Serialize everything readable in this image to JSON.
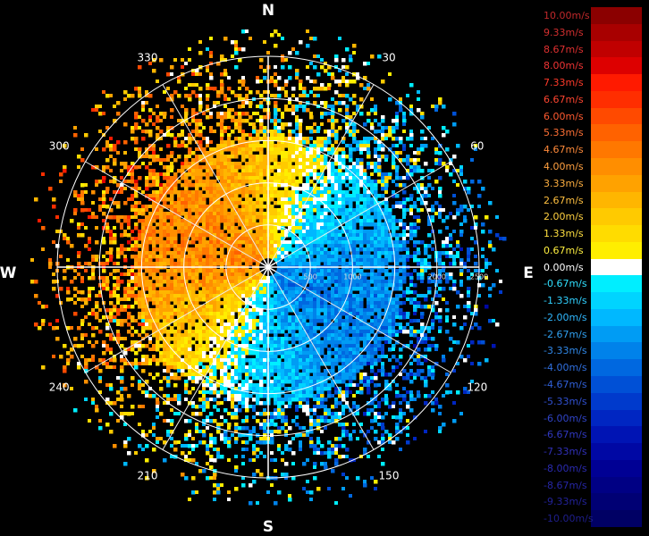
{
  "chart_data": {
    "type": "polar-radar",
    "cardinal_labels": {
      "north": "N",
      "east": "E",
      "south": "S",
      "west": "W"
    },
    "azimuth_labels": [
      {
        "angle": 30,
        "text": "30"
      },
      {
        "angle": 60,
        "text": "60"
      },
      {
        "angle": 120,
        "text": "120"
      },
      {
        "angle": 150,
        "text": "150"
      },
      {
        "angle": 210,
        "text": "210"
      },
      {
        "angle": 240,
        "text": "240"
      },
      {
        "angle": 300,
        "text": "300"
      },
      {
        "angle": 330,
        "text": "330"
      }
    ],
    "range_rings": [
      500,
      1000,
      1500,
      2000,
      2500
    ],
    "range_tick_labels": [
      {
        "value": 500,
        "text": "500"
      },
      {
        "value": 1000,
        "text": "1000"
      },
      {
        "value": 2000,
        "text": "2000"
      },
      {
        "value": 2500,
        "text": "2500"
      }
    ],
    "max_range": 2500,
    "color_scale": [
      {
        "label": "10.00m/s",
        "value": 10.0,
        "color": "#8b0000",
        "text_color": "#c0282a"
      },
      {
        "label": "9.33m/s",
        "value": 9.33,
        "color": "#a80000",
        "text_color": "#d32f2f"
      },
      {
        "label": "8.67m/s",
        "value": 8.67,
        "color": "#c00000",
        "text_color": "#e03030"
      },
      {
        "label": "8.00m/s",
        "value": 8.0,
        "color": "#dd0000",
        "text_color": "#f03434"
      },
      {
        "label": "7.33m/s",
        "value": 7.33,
        "color": "#ff1a00",
        "text_color": "#ff3a2a"
      },
      {
        "label": "6.67m/s",
        "value": 6.67,
        "color": "#ff2e00",
        "text_color": "#ff4530"
      },
      {
        "label": "6.00m/s",
        "value": 6.0,
        "color": "#ff4a00",
        "text_color": "#ff5a30"
      },
      {
        "label": "5.33m/s",
        "value": 5.33,
        "color": "#ff6200",
        "text_color": "#ff7035"
      },
      {
        "label": "4.67m/s",
        "value": 4.67,
        "color": "#ff7800",
        "text_color": "#ff8a3a"
      },
      {
        "label": "4.00m/s",
        "value": 4.0,
        "color": "#ff8e00",
        "text_color": "#ffa040"
      },
      {
        "label": "3.33m/s",
        "value": 3.33,
        "color": "#ffa200",
        "text_color": "#ffb040"
      },
      {
        "label": "2.67m/s",
        "value": 2.67,
        "color": "#ffb600",
        "text_color": "#ffc040"
      },
      {
        "label": "2.00m/s",
        "value": 2.0,
        "color": "#ffca00",
        "text_color": "#ffd040"
      },
      {
        "label": "1.33m/s",
        "value": 1.33,
        "color": "#ffdc00",
        "text_color": "#ffe040"
      },
      {
        "label": "0.67m/s",
        "value": 0.67,
        "color": "#ffee00",
        "text_color": "#fff040"
      },
      {
        "label": "0.00m/s",
        "value": 0.0,
        "color": "#ffffff",
        "text_color": "#ffffff"
      },
      {
        "label": "-0.67m/s",
        "value": -0.67,
        "color": "#00eeff",
        "text_color": "#30e0ff"
      },
      {
        "label": "-1.33m/s",
        "value": -1.33,
        "color": "#00d4ff",
        "text_color": "#30d0ff"
      },
      {
        "label": "-2.00m/s",
        "value": -2.0,
        "color": "#00b8ff",
        "text_color": "#30b8ff"
      },
      {
        "label": "-2.67m/s",
        "value": -2.67,
        "color": "#009cf4",
        "text_color": "#30a0f0"
      },
      {
        "label": "-3.33m/s",
        "value": -3.33,
        "color": "#0082ea",
        "text_color": "#3088e8"
      },
      {
        "label": "-4.00m/s",
        "value": -4.0,
        "color": "#0068e0",
        "text_color": "#3070e0"
      },
      {
        "label": "-4.67m/s",
        "value": -4.67,
        "color": "#0050d6",
        "text_color": "#3060d8"
      },
      {
        "label": "-5.33m/s",
        "value": -5.33,
        "color": "#003acc",
        "text_color": "#3050d0"
      },
      {
        "label": "-6.00m/s",
        "value": -6.0,
        "color": "#0026c2",
        "text_color": "#3044c8"
      },
      {
        "label": "-6.67m/s",
        "value": -6.67,
        "color": "#0014b4",
        "text_color": "#3038c0"
      },
      {
        "label": "-7.33m/s",
        "value": -7.33,
        "color": "#0008a4",
        "text_color": "#3030b8"
      },
      {
        "label": "-8.00m/s",
        "value": -8.0,
        "color": "#000094",
        "text_color": "#2a2ab0"
      },
      {
        "label": "-8.67m/s",
        "value": -8.67,
        "color": "#000084",
        "text_color": "#2626a4"
      },
      {
        "label": "-9.33m/s",
        "value": -9.33,
        "color": "#000074",
        "text_color": "#222298"
      },
      {
        "label": "-10.00m/s",
        "value": -10.0,
        "color": "#000064",
        "text_color": "#1e1e8c"
      }
    ],
    "velocity_pattern": {
      "receding_sector_center_deg": 115,
      "approaching_sector_center_deg": 295,
      "receding_peak_mps": -3.3,
      "approaching_peak_mps": 4.2,
      "dense_echo_range": 1600
    }
  }
}
